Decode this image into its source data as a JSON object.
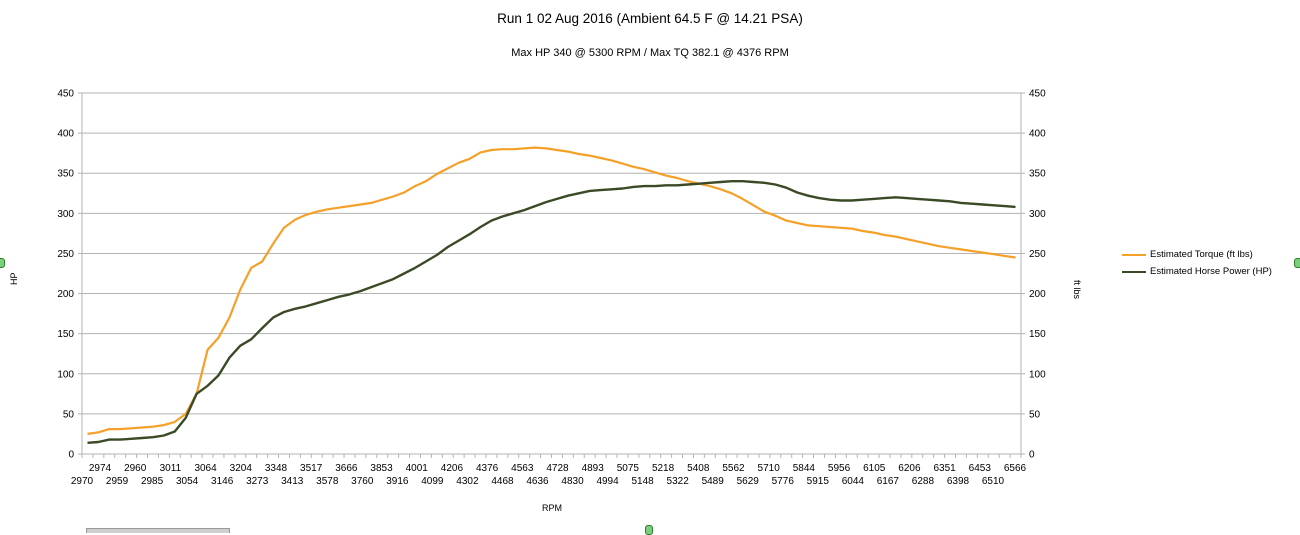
{
  "chart_data": {
    "type": "line",
    "title": "Run 1 02 Aug 2016 (Ambient 64.5 F @  14.21 PSA)",
    "subtitle": "Max HP 340 @ 5300 RPM / Max TQ 382.1 @ 4376 RPM",
    "xlabel": "RPM",
    "ylabel_left": "HP",
    "ylabel_right": "ft lbs",
    "ylim": [
      0,
      450
    ],
    "yticks": [
      0,
      50,
      100,
      150,
      200,
      250,
      300,
      350,
      400,
      450
    ],
    "grid": true,
    "legend_position": "right",
    "x_ticks_upper": [
      "2974",
      "2960",
      "3011",
      "3064",
      "3204",
      "3348",
      "3517",
      "3666",
      "3853",
      "4001",
      "4206",
      "4376",
      "4563",
      "4728",
      "4893",
      "5075",
      "5218",
      "5408",
      "5562",
      "5710",
      "5844",
      "5956",
      "6105",
      "6206",
      "6351",
      "6453",
      "6566"
    ],
    "x_ticks_lower": [
      "2970",
      "2959",
      "2985",
      "3054",
      "3146",
      "3273",
      "3413",
      "3578",
      "3760",
      "3916",
      "4099",
      "4302",
      "4468",
      "4636",
      "4830",
      "4994",
      "5148",
      "5322",
      "5489",
      "5629",
      "5776",
      "5915",
      "6044",
      "6167",
      "6288",
      "6398",
      "6510"
    ],
    "series": [
      {
        "name": "Estimated Torque (ft lbs)",
        "color": "#f5a028",
        "values": [
          25,
          27,
          31,
          31,
          32,
          33,
          34,
          36,
          40,
          50,
          75,
          130,
          145,
          170,
          205,
          232,
          240,
          262,
          282,
          292,
          298,
          302,
          305,
          307,
          309,
          311,
          313,
          317,
          321,
          326,
          334,
          340,
          349,
          356,
          363,
          368,
          376,
          379,
          380,
          380,
          381,
          382,
          381,
          379,
          377,
          374,
          372,
          369,
          366,
          362,
          358,
          355,
          351,
          347,
          344,
          340,
          337,
          334,
          330,
          325,
          318,
          310,
          302,
          297,
          291,
          288,
          285,
          284,
          283,
          282,
          281,
          278,
          276,
          273,
          271,
          268,
          265,
          262,
          259,
          257,
          255,
          253,
          251,
          249,
          247,
          245
        ]
      },
      {
        "name": "Estimated Horse Power (HP)",
        "color": "#3b4a26",
        "values": [
          14,
          15,
          18,
          18,
          19,
          20,
          21,
          23,
          28,
          45,
          75,
          85,
          98,
          120,
          135,
          143,
          157,
          170,
          177,
          181,
          184,
          188,
          192,
          196,
          199,
          203,
          208,
          213,
          218,
          225,
          232,
          240,
          248,
          258,
          266,
          274,
          283,
          291,
          296,
          300,
          304,
          309,
          314,
          318,
          322,
          325,
          328,
          329,
          330,
          331,
          333,
          334,
          334,
          335,
          335,
          336,
          337,
          338,
          339,
          340,
          340,
          339,
          338,
          336,
          332,
          326,
          322,
          319,
          317,
          316,
          316,
          317,
          318,
          319,
          320,
          319,
          318,
          317,
          316,
          315,
          313,
          312,
          311,
          310,
          309,
          308
        ]
      }
    ]
  }
}
